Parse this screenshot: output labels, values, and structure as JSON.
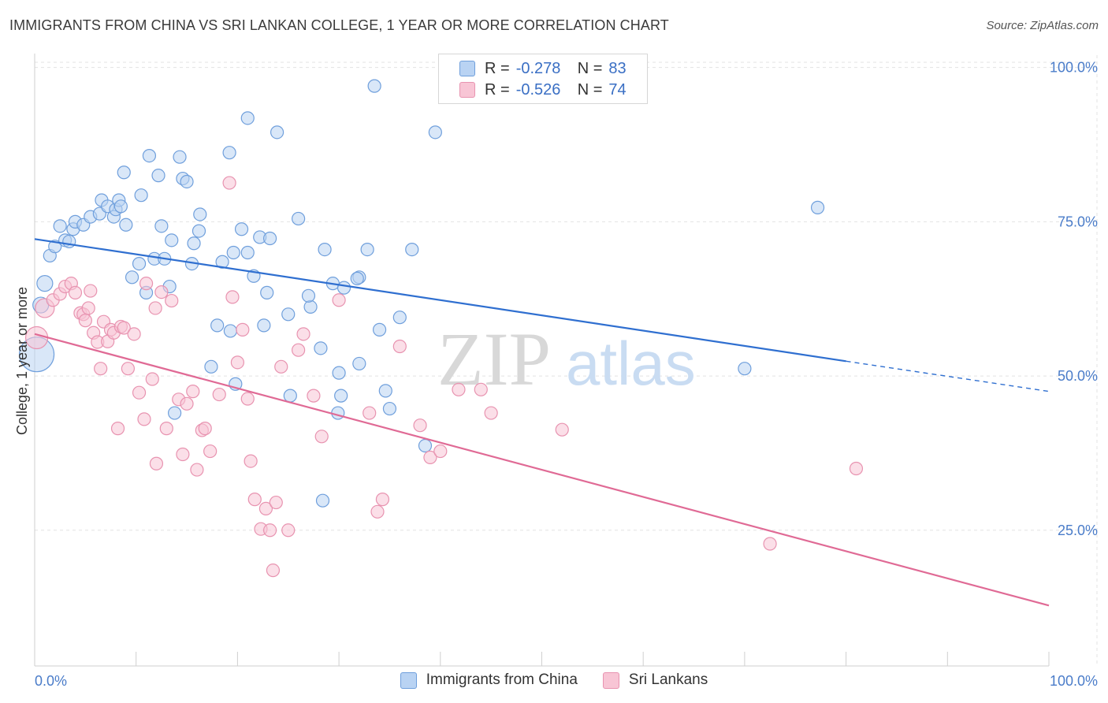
{
  "title": "IMMIGRANTS FROM CHINA VS SRI LANKAN COLLEGE, 1 YEAR OR MORE CORRELATION CHART",
  "source": "Source: ZipAtlas.com",
  "watermark": {
    "zip": "ZIP",
    "atlas": "atlas"
  },
  "legend": {
    "series1": {
      "r_label": "R =",
      "r_value": "-0.278",
      "n_label": "N =",
      "n_value": "83"
    },
    "series2": {
      "r_label": "R =",
      "r_value": "-0.526",
      "n_label": "N =",
      "n_value": "74"
    }
  },
  "colors": {
    "blue_fill": "#b9d3f3",
    "blue_stroke": "#6f9fdc",
    "blue_line": "#2f6fd0",
    "pink_fill": "#f8c5d5",
    "pink_stroke": "#e893b0",
    "pink_line": "#e06a95",
    "tick_text": "#4a7cc9",
    "grid": "#e3e3e3"
  },
  "chart_data": {
    "type": "scatter",
    "title": "IMMIGRANTS FROM CHINA VS SRI LANKAN COLLEGE, 1 YEAR OR MORE CORRELATION CHART",
    "xlabel": "",
    "ylabel": "College, 1 year or more",
    "xlim": [
      0,
      100
    ],
    "ylim": [
      3,
      102
    ],
    "x_tick_labels": [
      "0.0%",
      "100.0%"
    ],
    "y_ticks": [
      25,
      50,
      75,
      100
    ],
    "y_tick_labels": [
      "25.0%",
      "50.0%",
      "75.0%",
      "100.0%"
    ],
    "series": [
      {
        "name": "Immigrants from China",
        "color": "#6f9fdc",
        "trend": {
          "x0": 0,
          "y0": 72.2,
          "x1": 80,
          "y1": 52.4,
          "dash_to_x": 100,
          "dash_to_y": 47.5
        },
        "points": [
          [
            0.2,
            53.5,
            22
          ],
          [
            0.6,
            61.5,
            10
          ],
          [
            1.0,
            65.0,
            10
          ],
          [
            1.5,
            69.5,
            8
          ],
          [
            2.0,
            71.0,
            8
          ],
          [
            2.5,
            74.3,
            8
          ],
          [
            3.0,
            72.0,
            8
          ],
          [
            3.4,
            71.8,
            8
          ],
          [
            3.8,
            73.8,
            8
          ],
          [
            4.0,
            75.0,
            8
          ],
          [
            4.8,
            74.5,
            8
          ],
          [
            5.5,
            75.8,
            8
          ],
          [
            6.4,
            76.3,
            8
          ],
          [
            6.6,
            78.5,
            8
          ],
          [
            7.2,
            77.5,
            8
          ],
          [
            7.8,
            75.8,
            8
          ],
          [
            8.0,
            77.0,
            8
          ],
          [
            8.3,
            78.5,
            8
          ],
          [
            8.5,
            77.5,
            8
          ],
          [
            9.0,
            74.5,
            8
          ],
          [
            8.8,
            83.0,
            8
          ],
          [
            9.6,
            66.0,
            8
          ],
          [
            10.3,
            68.2,
            8
          ],
          [
            10.5,
            79.3,
            8
          ],
          [
            11.0,
            63.5,
            8
          ],
          [
            11.3,
            85.7,
            8
          ],
          [
            11.8,
            69.0,
            8
          ],
          [
            12.2,
            82.5,
            8
          ],
          [
            12.5,
            74.3,
            8
          ],
          [
            12.8,
            69.0,
            8
          ],
          [
            13.3,
            64.5,
            8
          ],
          [
            13.5,
            72.0,
            8
          ],
          [
            13.8,
            44.0,
            8
          ],
          [
            14.3,
            85.5,
            8
          ],
          [
            14.6,
            82.0,
            8
          ],
          [
            15.0,
            81.5,
            8
          ],
          [
            15.5,
            68.2,
            8
          ],
          [
            15.7,
            71.5,
            8
          ],
          [
            16.2,
            73.5,
            8
          ],
          [
            16.3,
            76.2,
            8
          ],
          [
            17.4,
            51.5,
            8
          ],
          [
            18.0,
            58.2,
            8
          ],
          [
            18.5,
            68.5,
            8
          ],
          [
            19.2,
            86.2,
            8
          ],
          [
            19.3,
            57.3,
            8
          ],
          [
            19.6,
            70.0,
            8
          ],
          [
            19.8,
            48.7,
            8
          ],
          [
            20.4,
            73.8,
            8
          ],
          [
            21.0,
            91.8,
            8
          ],
          [
            21.6,
            66.2,
            8
          ],
          [
            22.2,
            72.5,
            8
          ],
          [
            22.6,
            58.2,
            8
          ],
          [
            22.9,
            63.5,
            8
          ],
          [
            23.2,
            72.3,
            8
          ],
          [
            23.9,
            89.5,
            8
          ],
          [
            25.2,
            46.8,
            8
          ],
          [
            26.0,
            75.5,
            8
          ],
          [
            27.2,
            61.2,
            8
          ],
          [
            28.2,
            54.5,
            8
          ],
          [
            28.6,
            70.5,
            8
          ],
          [
            29.4,
            65.0,
            8
          ],
          [
            30.0,
            50.5,
            8
          ],
          [
            30.5,
            64.3,
            8
          ],
          [
            32.0,
            66.0,
            8
          ],
          [
            32.8,
            70.5,
            8
          ],
          [
            33.5,
            97.0,
            8
          ],
          [
            34.0,
            57.5,
            8
          ],
          [
            35.0,
            44.7,
            8
          ],
          [
            36.0,
            59.5,
            8
          ],
          [
            37.2,
            70.5,
            8
          ],
          [
            38.5,
            38.7,
            8
          ],
          [
            29.9,
            44.0,
            8
          ],
          [
            30.2,
            46.8,
            8
          ],
          [
            21.0,
            70.0,
            8
          ],
          [
            27.0,
            63.0,
            8
          ],
          [
            32.0,
            52.0,
            8
          ],
          [
            25.0,
            60.0,
            8
          ],
          [
            28.4,
            29.8,
            8
          ],
          [
            31.8,
            65.8,
            8
          ],
          [
            34.6,
            47.6,
            8
          ],
          [
            77.2,
            77.3,
            8
          ],
          [
            70.0,
            51.2,
            8
          ],
          [
            39.5,
            89.5,
            8
          ]
        ]
      },
      {
        "name": "Sri Lankans",
        "color": "#e893b0",
        "trend": {
          "x0": 0,
          "y0": 56.8,
          "x1": 100,
          "y1": 12.8
        },
        "points": [
          [
            0.2,
            56.2,
            14
          ],
          [
            1.0,
            61.0,
            12
          ],
          [
            1.8,
            62.3,
            8
          ],
          [
            2.5,
            63.3,
            8
          ],
          [
            3.0,
            64.5,
            8
          ],
          [
            3.6,
            65.0,
            8
          ],
          [
            4.0,
            63.5,
            8
          ],
          [
            4.5,
            60.2,
            8
          ],
          [
            4.8,
            60.0,
            8
          ],
          [
            5.0,
            59.0,
            8
          ],
          [
            5.3,
            61.0,
            8
          ],
          [
            5.5,
            63.8,
            8
          ],
          [
            5.8,
            57.0,
            8
          ],
          [
            6.2,
            55.5,
            8
          ],
          [
            6.5,
            51.2,
            8
          ],
          [
            6.8,
            58.8,
            8
          ],
          [
            7.2,
            55.6,
            8
          ],
          [
            7.5,
            57.5,
            8
          ],
          [
            7.8,
            57.0,
            8
          ],
          [
            8.2,
            41.5,
            8
          ],
          [
            8.5,
            58.0,
            8
          ],
          [
            8.8,
            57.8,
            8
          ],
          [
            9.2,
            51.2,
            8
          ],
          [
            9.8,
            56.8,
            8
          ],
          [
            10.3,
            47.3,
            8
          ],
          [
            10.8,
            43.0,
            8
          ],
          [
            11.0,
            65.0,
            8
          ],
          [
            11.6,
            49.5,
            8
          ],
          [
            11.9,
            61.0,
            8
          ],
          [
            12.0,
            35.8,
            8
          ],
          [
            12.5,
            63.6,
            8
          ],
          [
            13.0,
            41.5,
            8
          ],
          [
            13.5,
            62.2,
            8
          ],
          [
            14.2,
            46.2,
            8
          ],
          [
            14.6,
            37.3,
            8
          ],
          [
            15.0,
            45.5,
            8
          ],
          [
            15.6,
            47.5,
            8
          ],
          [
            16.0,
            34.8,
            8
          ],
          [
            16.5,
            41.2,
            8
          ],
          [
            16.8,
            41.5,
            8
          ],
          [
            17.3,
            37.8,
            8
          ],
          [
            18.2,
            47.0,
            8
          ],
          [
            19.2,
            81.3,
            8
          ],
          [
            19.5,
            62.8,
            8
          ],
          [
            20.0,
            52.2,
            8
          ],
          [
            20.5,
            57.5,
            8
          ],
          [
            21.0,
            46.3,
            8
          ],
          [
            21.3,
            36.2,
            8
          ],
          [
            21.7,
            30.0,
            8
          ],
          [
            22.3,
            25.2,
            8
          ],
          [
            22.8,
            28.5,
            8
          ],
          [
            23.2,
            25.0,
            8
          ],
          [
            23.5,
            18.5,
            8
          ],
          [
            23.8,
            29.5,
            8
          ],
          [
            24.3,
            51.5,
            8
          ],
          [
            25.0,
            25.0,
            8
          ],
          [
            26.0,
            54.2,
            8
          ],
          [
            26.5,
            56.8,
            8
          ],
          [
            27.5,
            46.8,
            8
          ],
          [
            28.3,
            40.2,
            8
          ],
          [
            30.0,
            62.3,
            8
          ],
          [
            33.0,
            44.0,
            8
          ],
          [
            33.8,
            28.0,
            8
          ],
          [
            34.3,
            30.0,
            8
          ],
          [
            36.0,
            54.8,
            8
          ],
          [
            38.0,
            42.0,
            8
          ],
          [
            39.0,
            36.8,
            8
          ],
          [
            40.0,
            37.8,
            8
          ],
          [
            41.8,
            47.8,
            8
          ],
          [
            44.0,
            47.8,
            8
          ],
          [
            45.0,
            44.0,
            8
          ],
          [
            52.0,
            41.3,
            8
          ],
          [
            72.5,
            22.8,
            8
          ],
          [
            81.0,
            35.0,
            8
          ]
        ]
      }
    ]
  },
  "bottom_legend": {
    "series1": "Immigrants from China",
    "series2": "Sri Lankans"
  }
}
